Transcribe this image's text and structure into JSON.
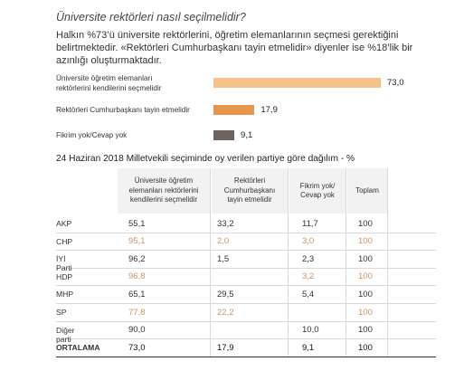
{
  "header": {
    "title": "Üniversite rektörleri nasıl seçilmelidir?",
    "intro": "Halkın %73’ü üniversite rektörlerini, öğretim elemanlarının seçmesi gerektiğini belirtmektedir. «Rektörleri Cumhurbaşkanı tayin etmelidir» diyenler ise %18’lik bir azınlığı oluşturmaktadır."
  },
  "chart_data": [
    {
      "type": "bar",
      "orientation": "horizontal",
      "categories": [
        "Üniversite öğretim elemanları rektörlerini kendilerini seçmelidir",
        "Rektörleri Cumhurbaşkanı tayin etmelidir",
        "Fikrim yok/Cevap yok"
      ],
      "category_lines": [
        [
          "Üniversite öğretim elemanları",
          "rektörlerini kendilerini seçmelidir"
        ],
        [
          "Rektörleri Cumhurbaşkanı tayin etmelidir"
        ],
        [
          "Fikrim yok/Cevap yok"
        ]
      ],
      "values": [
        73.0,
        17.9,
        9.1
      ],
      "value_labels": [
        "73,0",
        "17,9",
        "9,1"
      ],
      "colors": [
        "#f4c38a",
        "#e8954f",
        "#6d6461"
      ],
      "xlim": [
        0,
        73
      ]
    },
    {
      "type": "table",
      "title": "24 Haziran 2018 Milletvekili seçiminde oy verilen partiye göre dağılım - %",
      "columns": [
        [
          "Üniversite öğretim",
          "elemanları rektörlerini",
          "kendilerini seçmelidir"
        ],
        [
          "Rektörleri",
          "Cumhurbaşkanı",
          "tayin etmelidir"
        ],
        [
          "Fikrim yok/",
          "Cevap yok"
        ],
        [
          "Toplam"
        ]
      ],
      "rows": [
        {
          "label": "AKP",
          "values": [
            "55,1",
            "33,2",
            "11,7",
            "100"
          ],
          "color": "#333333"
        },
        {
          "label": "CHP",
          "values": [
            "95,1",
            "2,0",
            "3,0",
            "100"
          ],
          "color": "#c8956a"
        },
        {
          "label": "İYİ Parti",
          "values": [
            "96,2",
            "1,5",
            "2,3",
            "100"
          ],
          "color": "#333333"
        },
        {
          "label": "HDP",
          "values": [
            "96,8",
            "",
            "3,2",
            "100"
          ],
          "color": "#c8956a"
        },
        {
          "label": "MHP",
          "values": [
            "65,1",
            "29,5",
            "5,4",
            "100"
          ],
          "color": "#333333"
        },
        {
          "label": "SP",
          "values": [
            "77,8",
            "22,2",
            "",
            "100"
          ],
          "color": "#c8956a"
        },
        {
          "label": "Diğer parti",
          "values": [
            "90,0",
            "",
            "10,0",
            "100"
          ],
          "color": "#333333"
        },
        {
          "label": "ORTALAMA",
          "values": [
            "73,0",
            "17,9",
            "9,1",
            "100"
          ],
          "color": "#111111",
          "bold": true
        }
      ]
    }
  ]
}
